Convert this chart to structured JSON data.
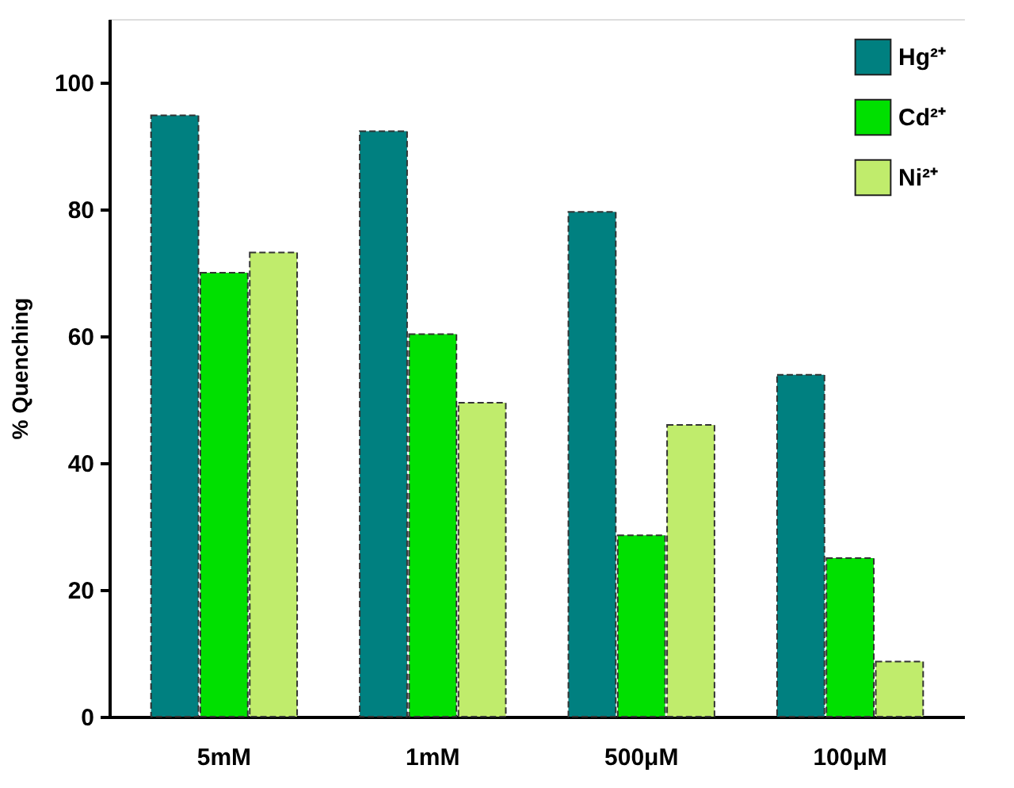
{
  "chart_data": {
    "type": "bar",
    "ylabel": "% Quenching",
    "categories": [
      "5mM",
      "1mM",
      "500μM",
      "100μM"
    ],
    "series": [
      {
        "name": "Hg²⁺",
        "color": "#008080",
        "values": [
          94.8,
          92.3,
          79.6,
          53.9
        ]
      },
      {
        "name": "Cd²⁺",
        "color": "#00e000",
        "values": [
          70.0,
          60.3,
          28.6,
          25.0
        ]
      },
      {
        "name": "Ni²⁺",
        "color": "#c0ec6c",
        "values": [
          73.2,
          49.5,
          46.0,
          8.7
        ]
      }
    ],
    "ylim": [
      0,
      110
    ],
    "yticks": [
      0,
      20,
      40,
      60,
      80,
      100
    ],
    "grid": false,
    "legend": "top right"
  }
}
